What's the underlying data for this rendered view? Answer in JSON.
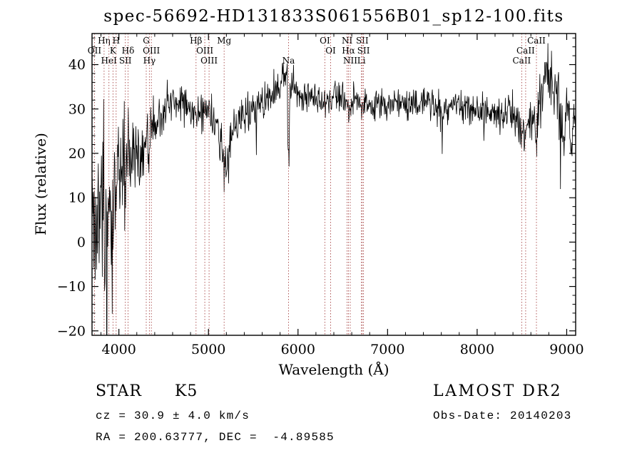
{
  "title": "spec-56692-HD131833S061556B01_sp12-100.fits",
  "chart_data": {
    "type": "line",
    "title": "spec-56692-HD131833S061556B01_sp12-100.fits",
    "xlabel": "Wavelength (Å)",
    "ylabel": "Flux (relative)",
    "xlim": [
      3700,
      9100
    ],
    "ylim": [
      -21,
      47
    ],
    "x_ticks": [
      4000,
      5000,
      6000,
      7000,
      8000,
      9000
    ],
    "y_ticks": [
      -20,
      -10,
      0,
      10,
      20,
      30,
      40
    ],
    "x_minor_step": 200,
    "y_minor_step": 2,
    "grid": false,
    "line_color": "#000000",
    "marker_line_color": "#a84848",
    "noise_seed": 20140203,
    "continuum": {
      "wavelength": [
        3700,
        3740,
        3780,
        3820,
        3860,
        3900,
        3950,
        4000,
        4050,
        4100,
        4150,
        4200,
        4250,
        4300,
        4350,
        4400,
        4450,
        4500,
        4550,
        4600,
        4650,
        4700,
        4750,
        4800,
        4850,
        4900,
        4950,
        5000,
        5050,
        5100,
        5150,
        5200,
        5250,
        5300,
        5350,
        5400,
        5450,
        5500,
        5550,
        5600,
        5650,
        5700,
        5750,
        5800,
        5850,
        5880,
        5896,
        5912,
        5950,
        6000,
        6050,
        6100,
        6150,
        6200,
        6250,
        6300,
        6350,
        6400,
        6450,
        6500,
        6550,
        6563,
        6600,
        6650,
        6700,
        6750,
        6800,
        6850,
        6900,
        6950,
        7000,
        7100,
        7200,
        7300,
        7400,
        7500,
        7600,
        7650,
        7700,
        7800,
        7900,
        8000,
        8100,
        8200,
        8300,
        8400,
        8450,
        8500,
        8520,
        8542,
        8560,
        8600,
        8640,
        8662,
        8680,
        8720,
        8760,
        8800,
        8840,
        8880,
        8920,
        8960,
        9000,
        9050,
        9100
      ],
      "flux": [
        2,
        6,
        8,
        10,
        9,
        11,
        13,
        15,
        16,
        16,
        18,
        20,
        20,
        19,
        22,
        26,
        28,
        30,
        31,
        31,
        32,
        32,
        31,
        30,
        29,
        30,
        30,
        29,
        28,
        26,
        21,
        17,
        23,
        27,
        28,
        29,
        30,
        30,
        31,
        31,
        32,
        33,
        35,
        36,
        37,
        37,
        14,
        35,
        36,
        34,
        33,
        33,
        33,
        33,
        32,
        32,
        32,
        33,
        32,
        32,
        31,
        29,
        32,
        32,
        32,
        31,
        31,
        30,
        31,
        31,
        31,
        32,
        31,
        31,
        32,
        31,
        29,
        30,
        31,
        31,
        30,
        30,
        29,
        29,
        29,
        29,
        28,
        24,
        27,
        22,
        27,
        28,
        27,
        23,
        29,
        33,
        38,
        40,
        36,
        33,
        30,
        28,
        27,
        26,
        25
      ],
      "noise_amplitude": [
        16,
        14,
        13,
        12,
        12,
        11,
        10,
        9,
        8,
        8,
        7,
        6,
        6,
        6,
        5,
        4,
        3.5,
        3,
        3,
        3,
        2.8,
        2.8,
        2.8,
        2.8,
        3,
        2.8,
        2.8,
        2.8,
        3,
        3.5,
        4,
        4.5,
        3.5,
        3,
        2.8,
        2.6,
        2.5,
        2.5,
        2.5,
        2.5,
        2.5,
        2.6,
        2.8,
        3,
        3,
        3,
        5,
        3,
        2.8,
        2.6,
        2.4,
        2.4,
        2.3,
        2.3,
        2.3,
        2.4,
        2.3,
        2.2,
        2.2,
        2.2,
        2.4,
        2.5,
        2.2,
        2.2,
        2.2,
        2.2,
        2.3,
        2.4,
        2.2,
        2.1,
        2.1,
        2.1,
        2.2,
        2.2,
        2.1,
        2.2,
        2.6,
        2.3,
        2.2,
        2.2,
        2.3,
        2.4,
        2.5,
        2.5,
        2.5,
        2.6,
        2.8,
        3.5,
        3,
        3.5,
        3,
        3,
        3,
        3.5,
        3,
        3.5,
        4,
        4.5,
        4.5,
        4.5,
        4.5,
        4.5,
        4.5,
        4.5,
        4.5
      ]
    },
    "spectral_lines": [
      {
        "label": "OII",
        "wavelength": 3727,
        "row": 1
      },
      {
        "label": "Hη",
        "wavelength": 3835,
        "row": 0
      },
      {
        "label": "HeI",
        "wavelength": 3889,
        "row": 2
      },
      {
        "label": "K",
        "wavelength": 3934,
        "row": 1
      },
      {
        "label": "H",
        "wavelength": 3969,
        "row": 0
      },
      {
        "label": "SII",
        "wavelength": 4072,
        "row": 2
      },
      {
        "label": "Hδ",
        "wavelength": 4102,
        "row": 1
      },
      {
        "label": "G",
        "wavelength": 4305,
        "row": 0
      },
      {
        "label": "Hγ",
        "wavelength": 4340,
        "row": 2
      },
      {
        "label": "OIII",
        "wavelength": 4363,
        "row": 1
      },
      {
        "label": "Hβ",
        "wavelength": 4861,
        "row": 0
      },
      {
        "label": "OIII",
        "wavelength": 4959,
        "row": 1
      },
      {
        "label": "OIII",
        "wavelength": 5007,
        "row": 2
      },
      {
        "label": "Mg",
        "wavelength": 5175,
        "row": 0
      },
      {
        "label": "Na",
        "wavelength": 5894,
        "row": 2
      },
      {
        "label": "OI",
        "wavelength": 6300,
        "row": 0
      },
      {
        "label": "OI",
        "wavelength": 6364,
        "row": 1
      },
      {
        "label": "NI",
        "wavelength": 6548,
        "row": 0
      },
      {
        "label": "Hα",
        "wavelength": 6563,
        "row": 1
      },
      {
        "label": "NII",
        "wavelength": 6583,
        "row": 2
      },
      {
        "label": "Li",
        "wavelength": 6708,
        "row": 2
      },
      {
        "label": "SII",
        "wavelength": 6717,
        "row": 0
      },
      {
        "label": "SII",
        "wavelength": 6731,
        "row": 1
      },
      {
        "label": "CaII",
        "wavelength": 8498,
        "row": 2
      },
      {
        "label": "CaII",
        "wavelength": 8542,
        "row": 1
      },
      {
        "label": "CaII",
        "wavelength": 8662,
        "row": 0
      }
    ]
  },
  "annotations": {
    "object_class": "STAR",
    "subclass": "K5",
    "survey": "LAMOST DR2",
    "cz": "cz = 30.9 ± 4.0 km/s",
    "obs_date": "Obs-Date: 20140203",
    "radec": "RA = 200.63777, DEC =  -4.89585"
  }
}
